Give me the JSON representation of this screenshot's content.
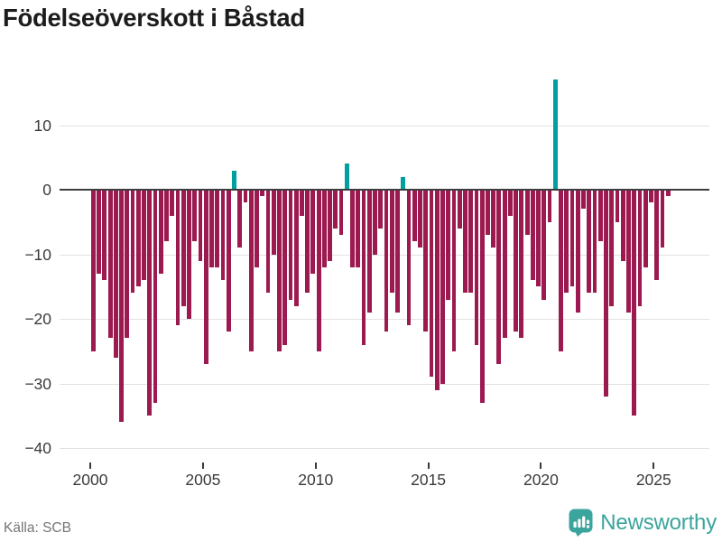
{
  "title": "Födelseöverskott i Båstad",
  "footer": {
    "source": "Källa: SCB",
    "brand_name": "Newsworthy",
    "brand_color": "#3ba49d"
  },
  "chart_data": {
    "type": "bar",
    "title": "Födelseöverskott i Båstad",
    "period": "quarterly",
    "start": "2000-Q1",
    "end": "2025-Q3",
    "values": [
      -25,
      -13,
      -14,
      -23,
      -26,
      -36,
      -23,
      -16,
      -15,
      -14,
      -35,
      -33,
      -13,
      -8,
      -4,
      -21,
      -18,
      -20,
      -8,
      -11,
      -27,
      -12,
      -12,
      -14,
      -22,
      3,
      -9,
      -2,
      -25,
      -12,
      -1,
      -16,
      -10,
      -25,
      -24,
      -17,
      -18,
      -4,
      -16,
      -13,
      -25,
      -12,
      -11,
      -6,
      -7,
      4,
      -12,
      -12,
      -24,
      -19,
      -10,
      -6,
      -22,
      -16,
      -19,
      2,
      -21,
      -8,
      -9,
      -22,
      -29,
      -31,
      -30,
      -17,
      -25,
      -6,
      -16,
      -16,
      -24,
      -33,
      -7,
      -9,
      -27,
      -23,
      -4,
      -22,
      -23,
      -7,
      -14,
      -15,
      -17,
      -5,
      17,
      -25,
      -16,
      -15,
      -19,
      -3,
      -16,
      -16,
      -8,
      -32,
      -18,
      -5,
      -11,
      -19,
      -35,
      -18,
      -12,
      -2,
      -14,
      -9,
      -1
    ],
    "colors": {
      "negative": "#9c1a4f",
      "positive": "#00a0a0"
    },
    "yticks": [
      {
        "label": "10",
        "value": 10
      },
      {
        "label": "0",
        "value": 0
      },
      {
        "label": "−10",
        "value": -10
      },
      {
        "label": "−20",
        "value": -20
      },
      {
        "label": "−30",
        "value": -30
      },
      {
        "label": "−40",
        "value": -40
      }
    ],
    "xticks": [
      {
        "label": "2000",
        "year": 2000
      },
      {
        "label": "2005",
        "year": 2005
      },
      {
        "label": "2010",
        "year": 2010
      },
      {
        "label": "2015",
        "year": 2015
      },
      {
        "label": "2020",
        "year": 2020
      },
      {
        "label": "2025",
        "year": 2025
      }
    ],
    "ylim": [
      -40,
      18
    ],
    "xlabel": "",
    "ylabel": "",
    "grid": true,
    "legend": "none"
  }
}
